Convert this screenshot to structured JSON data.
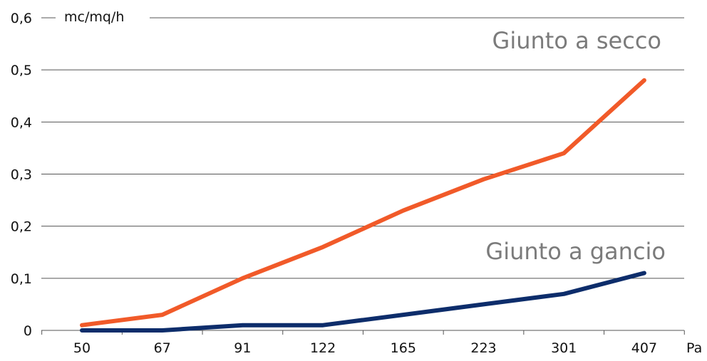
{
  "chart_data": {
    "type": "line",
    "x": [
      "50",
      "67",
      "91",
      "122",
      "165",
      "223",
      "301",
      "407"
    ],
    "xlabel": "Pa",
    "ylabel": "mc/mq/h",
    "ylim": [
      0,
      0.6
    ],
    "yticks": [
      "0",
      "0,1",
      "0,2",
      "0,3",
      "0,4",
      "0,5",
      "0,6"
    ],
    "grid": true,
    "series": [
      {
        "name": "Giunto a secco",
        "color": "#f15a29",
        "values": [
          0.01,
          0.03,
          0.1,
          0.16,
          0.23,
          0.29,
          0.34,
          0.48
        ]
      },
      {
        "name": "Giunto a gancio",
        "color": "#0d2d6b",
        "values": [
          0.0,
          0.0,
          0.01,
          0.01,
          0.03,
          0.05,
          0.07,
          0.11
        ]
      }
    ]
  }
}
